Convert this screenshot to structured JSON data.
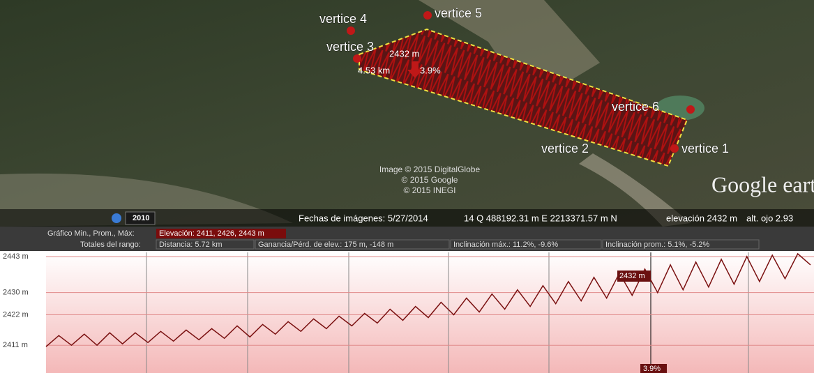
{
  "map": {
    "labels": [
      "vertice 4",
      "vertice 5",
      "vertice 3",
      "vertice 6",
      "vertice 2",
      "vertice 1"
    ],
    "measure": {
      "elevation": "2432 m",
      "distance": "4.53 km",
      "slope": "3.9%"
    },
    "attribution": [
      "Image © 2015 DigitalGlobe",
      "© 2015 Google",
      "© 2015 INEGI"
    ],
    "logo": "Google earth"
  },
  "status_bar": {
    "year": "2010",
    "date": "Fechas de imágenes: 5/27/2014",
    "coords": "14 Q 488192.31 m E 2213371.57 m N",
    "elevation": "elevación  2432 m",
    "eye_alt": "alt. ojo  2.93"
  },
  "profile_header": {
    "graph_label": "Gráfico  Min., Prom., Máx:",
    "elevation": "Elevación: 2411, 2426, 2443 m",
    "totals_label": "Totales del rango:",
    "distance": "Distancia: 5.72 km",
    "gain_loss": "Ganancia/Pérd. de elev.: 175 m, -148 m",
    "max_slope": "Inclinación máx.: 11.2%, -9.6%",
    "avg_slope": "Inclinación prom.: 5.1%, -5.2%"
  },
  "profile": {
    "type": "line",
    "color": "#7a1010",
    "ylim": [
      2401,
      2444.5
    ],
    "yticks": [
      {
        "value": 2443,
        "label": "2443 m"
      },
      {
        "value": 2430,
        "label": "2430 m"
      },
      {
        "value": 2422,
        "label": "2422 m"
      },
      {
        "value": 2411,
        "label": "2411 m"
      }
    ],
    "values": [
      2410.5,
      2414.5,
      2411,
      2415,
      2411,
      2415.5,
      2411.5,
      2415.5,
      2412,
      2416,
      2412.5,
      2416.5,
      2413,
      2417,
      2413.5,
      2418,
      2414,
      2418.5,
      2415,
      2419.5,
      2416,
      2420.5,
      2417,
      2421.5,
      2418,
      2422.5,
      2419,
      2424,
      2420,
      2425,
      2421,
      2426.5,
      2422,
      2428,
      2423,
      2429.5,
      2424,
      2431,
      2425,
      2432.5,
      2426,
      2434,
      2427,
      2435.5,
      2428,
      2437,
      2429,
      2438.5,
      2430,
      2440,
      2431,
      2441,
      2432,
      2442,
      2433,
      2443,
      2434,
      2443.5,
      2435,
      2444,
      2440
    ],
    "cursor_elevation": "2432 m",
    "cursor_slope": "3.9%"
  }
}
